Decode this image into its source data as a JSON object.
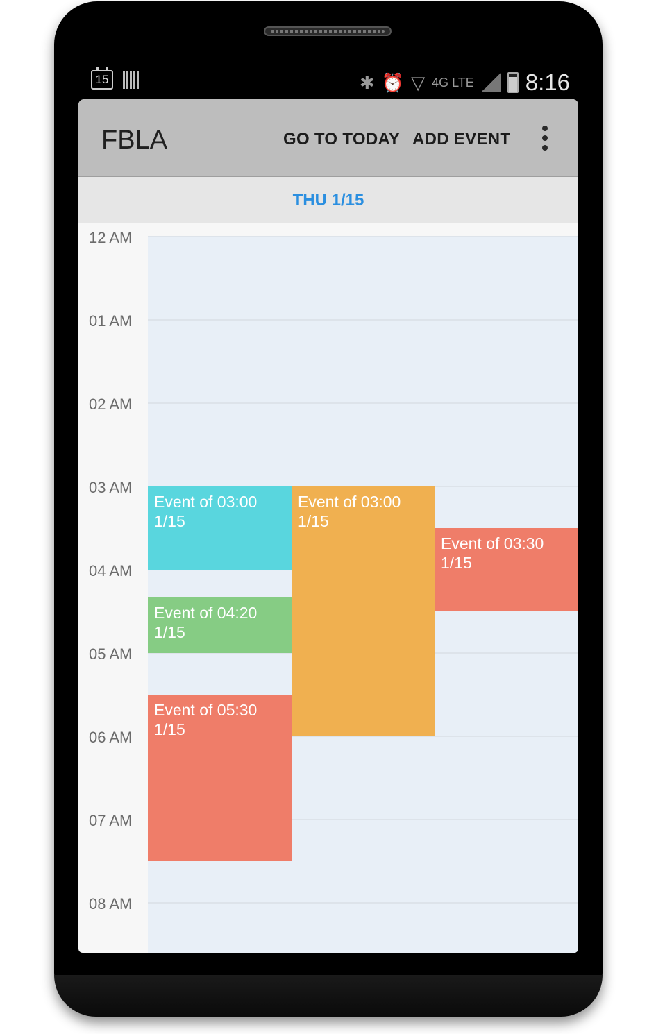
{
  "status_bar": {
    "calendar_day": "15",
    "time": "8:16",
    "network": "4G LTE"
  },
  "app_bar": {
    "title": "FBLA",
    "go_to_today": "GO TO TODAY",
    "add_event": "ADD EVENT",
    "overflow_icon": "more-vert-icon"
  },
  "day_header": {
    "label": "THU 1/15"
  },
  "hours": [
    "12 AM",
    "01 AM",
    "02 AM",
    "03 AM",
    "04 AM",
    "05 AM",
    "06 AM",
    "07 AM",
    "08 AM"
  ],
  "events": [
    {
      "title": "Event of 03:00",
      "date": "1/15",
      "color": "#59d6de"
    },
    {
      "title": "Event of 03:00",
      "date": "1/15",
      "color": "#f0b050"
    },
    {
      "title": "Event of 03:30",
      "date": "1/15",
      "color": "#ef7d69"
    },
    {
      "title": "Event of 04:20",
      "date": "1/15",
      "color": "#86cc84"
    },
    {
      "title": "Event of 05:30",
      "date": "1/15",
      "color": "#ef7d69"
    }
  ],
  "colors": {
    "accent": "#2b8fe0",
    "grid_background": "#e8eff7",
    "app_bar": "#bdbdbd"
  }
}
